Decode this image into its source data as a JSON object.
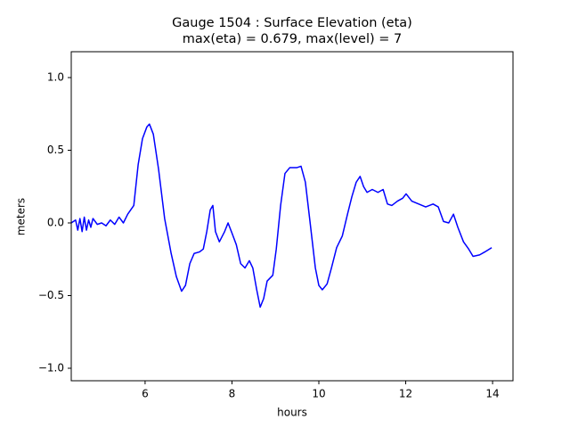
{
  "chart_data": {
    "type": "line",
    "title": "Gauge 1504 : Surface Elevation (eta)",
    "subtitle": "max(eta) =   0.679,    max(level) = 7",
    "x_label": "hours",
    "y_label": "meters",
    "xlim": [
      4.3,
      14.47
    ],
    "ylim": [
      -1.086,
      1.178
    ],
    "xticks": [
      6,
      8,
      10,
      12,
      14
    ],
    "yticks": [
      {
        "value": 1.0,
        "label": "1.0"
      },
      {
        "value": 0.5,
        "label": "0.5"
      },
      {
        "value": 0.0,
        "label": "0.0"
      },
      {
        "value": -0.5,
        "label": "−0.5"
      },
      {
        "value": -1.0,
        "label": "−1.0"
      }
    ],
    "grid": false,
    "series": [
      {
        "name": "eta",
        "color": "#0000ff",
        "x": [
          4.3,
          4.4,
          4.45,
          4.5,
          4.55,
          4.6,
          4.65,
          4.7,
          4.75,
          4.8,
          4.9,
          5.0,
          5.1,
          5.2,
          5.3,
          5.4,
          5.5,
          5.6,
          5.74,
          5.84,
          5.94,
          6.04,
          6.1,
          6.19,
          6.31,
          6.45,
          6.6,
          6.72,
          6.84,
          6.93,
          7.03,
          7.13,
          7.25,
          7.34,
          7.42,
          7.5,
          7.56,
          7.62,
          7.71,
          7.83,
          7.91,
          8.0,
          8.1,
          8.2,
          8.3,
          8.4,
          8.48,
          8.57,
          8.65,
          8.73,
          8.81,
          8.94,
          9.02,
          9.12,
          9.22,
          9.33,
          9.49,
          9.59,
          9.69,
          9.8,
          9.92,
          10.0,
          10.08,
          10.19,
          10.29,
          10.41,
          10.54,
          10.66,
          10.76,
          10.86,
          10.95,
          11.03,
          11.11,
          11.23,
          11.36,
          11.48,
          11.58,
          11.68,
          11.81,
          11.93,
          12.01,
          12.14,
          12.3,
          12.46,
          12.63,
          12.75,
          12.87,
          12.99,
          13.1,
          13.2,
          13.33,
          13.45,
          13.55,
          13.7,
          13.82,
          13.98
        ],
        "values": [
          0.0,
          0.02,
          -0.05,
          0.03,
          -0.06,
          0.04,
          -0.05,
          0.02,
          -0.03,
          0.03,
          -0.01,
          0.0,
          -0.02,
          0.02,
          -0.01,
          0.04,
          0.0,
          0.06,
          0.12,
          0.4,
          0.58,
          0.66,
          0.68,
          0.61,
          0.37,
          0.03,
          -0.21,
          -0.37,
          -0.47,
          -0.43,
          -0.28,
          -0.21,
          -0.2,
          -0.18,
          -0.06,
          0.09,
          0.12,
          -0.06,
          -0.13,
          -0.06,
          0.0,
          -0.07,
          -0.15,
          -0.28,
          -0.31,
          -0.26,
          -0.31,
          -0.46,
          -0.58,
          -0.52,
          -0.4,
          -0.36,
          -0.18,
          0.12,
          0.34,
          0.38,
          0.38,
          0.39,
          0.28,
          0.0,
          -0.31,
          -0.43,
          -0.46,
          -0.42,
          -0.31,
          -0.17,
          -0.09,
          0.06,
          0.18,
          0.28,
          0.32,
          0.25,
          0.21,
          0.23,
          0.21,
          0.23,
          0.13,
          0.12,
          0.15,
          0.17,
          0.2,
          0.15,
          0.13,
          0.11,
          0.13,
          0.11,
          0.01,
          0.0,
          0.06,
          -0.03,
          -0.13,
          -0.18,
          -0.23,
          -0.22,
          -0.2,
          -0.17
        ]
      }
    ]
  }
}
